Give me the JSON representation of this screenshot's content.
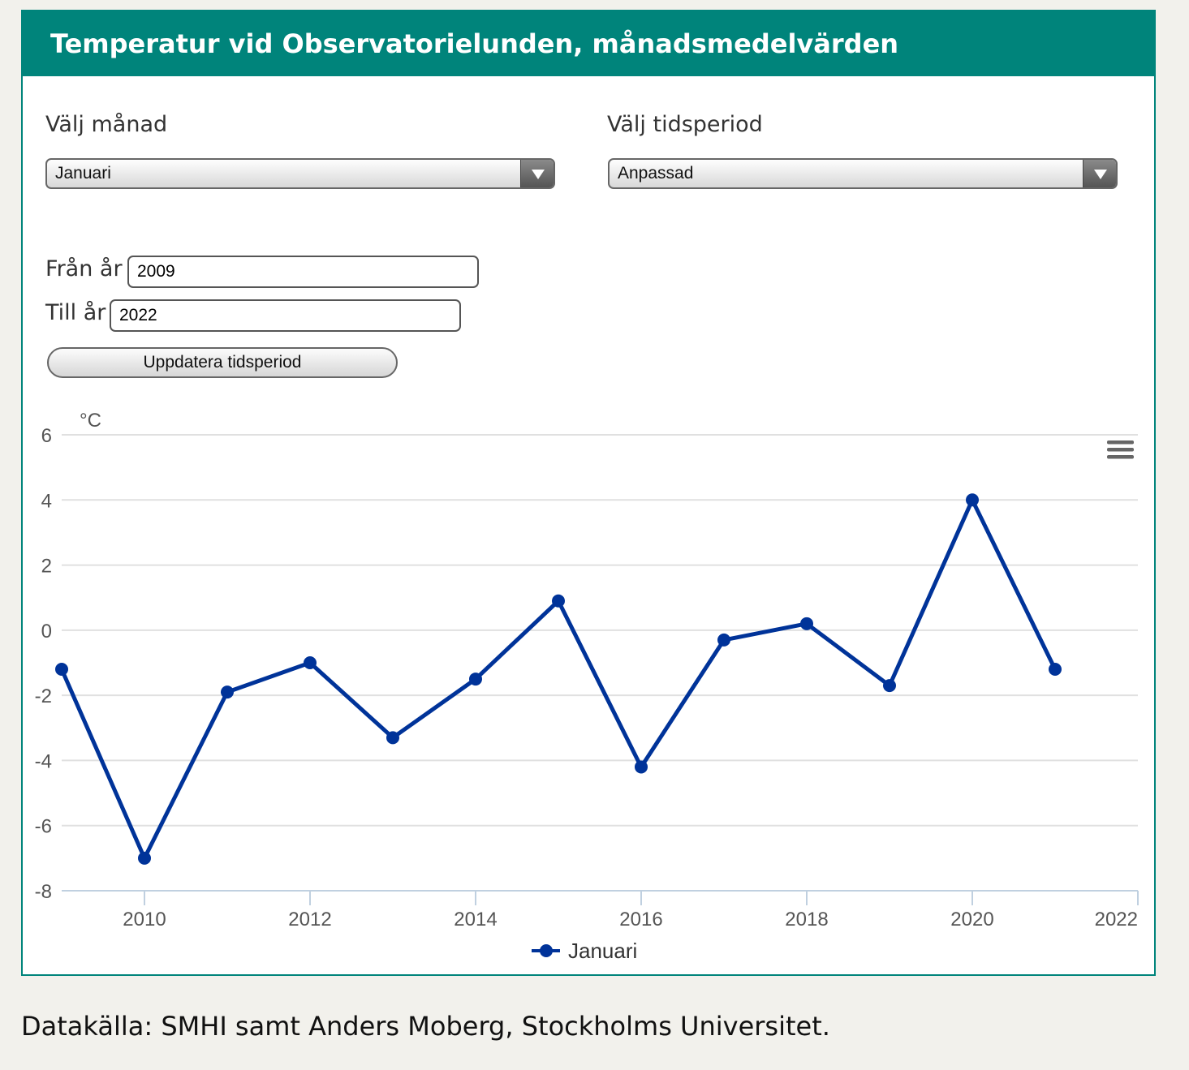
{
  "header": {
    "title": "Temperatur vid Observatorielunden, månadsmedelvärden"
  },
  "controls": {
    "month_label": "Välj månad",
    "month_value": "Januari",
    "period_label": "Välj tidsperiod",
    "period_value": "Anpassad",
    "from_label": "Från år",
    "from_value": "2009",
    "to_label": "Till år",
    "to_value": "2022",
    "update_button": "Uppdatera tidsperiod"
  },
  "chart_data": {
    "type": "line",
    "title": "",
    "xlabel": "",
    "ylabel": "°C",
    "xlim": [
      2009,
      2022
    ],
    "ylim": [
      -8,
      6
    ],
    "x_ticks": [
      2010,
      2012,
      2014,
      2016,
      2018,
      2020,
      2022
    ],
    "y_ticks": [
      -8,
      -6,
      -4,
      -2,
      0,
      2,
      4,
      6
    ],
    "grid": true,
    "legend_position": "bottom-center",
    "series": [
      {
        "name": "Januari",
        "color": "#003399",
        "x": [
          2009,
          2010,
          2011,
          2012,
          2013,
          2014,
          2015,
          2016,
          2017,
          2018,
          2019,
          2020,
          2021
        ],
        "values": [
          -1.2,
          -7.0,
          -1.9,
          -1.0,
          -3.3,
          -1.5,
          0.9,
          -4.2,
          -0.3,
          0.2,
          -1.7,
          4.0,
          -1.2
        ]
      }
    ]
  },
  "footer": {
    "source": "Datakälla: SMHI samt Anders Moberg, Stockholms Universitet."
  }
}
